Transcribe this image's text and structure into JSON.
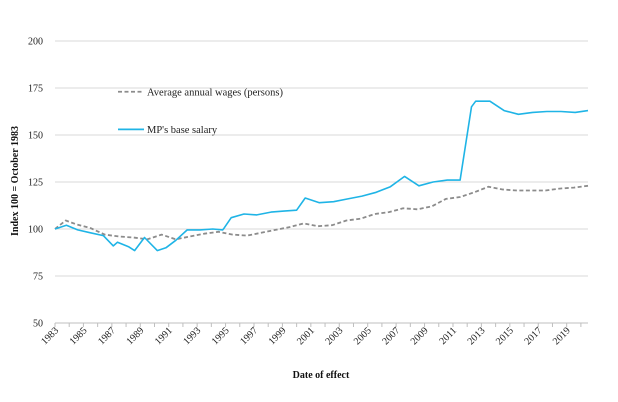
{
  "chart_data": {
    "type": "line",
    "title": "",
    "xlabel": "Date of effect",
    "ylabel": "Index 100 = October 1983",
    "xlim": [
      1983,
      2020.5
    ],
    "ylim": [
      50,
      200
    ],
    "x_ticks": [
      1983,
      1985,
      1987,
      1989,
      1991,
      1993,
      1995,
      1997,
      1999,
      2001,
      2003,
      2005,
      2007,
      2009,
      2011,
      2013,
      2015,
      2017,
      2019
    ],
    "x_tick_labels": [
      "1983",
      "1985",
      "1987",
      "1989",
      "1991",
      "1993",
      "1995",
      "1997",
      "1999",
      "2001",
      "2003",
      "2005",
      "2007",
      "2009",
      "2011",
      "2013",
      "2015",
      "2017",
      "2019"
    ],
    "y_ticks": [
      50,
      75,
      100,
      125,
      150,
      175,
      200
    ],
    "y_tick_labels": [
      "50",
      "75",
      "100",
      "125",
      "150",
      "175",
      "200"
    ],
    "grid": "horizontal",
    "legend_position": "upper-left inside plot",
    "series": [
      {
        "name": "Average annual wages (persons)",
        "color": "#8c8c8c",
        "style": "dashed",
        "x": [
          1983,
          1983.75,
          1984.5,
          1985.5,
          1986.5,
          1987.5,
          1988.5,
          1989.5,
          1990.5,
          1991.5,
          1992.5,
          1993.5,
          1994.5,
          1995.5,
          1996.5,
          1997.5,
          1998.5,
          1999.5,
          2000.5,
          2001.5,
          2002.5,
          2003.5,
          2004.5,
          2005.5,
          2006.5,
          2007.5,
          2008.5,
          2009.5,
          2010.5,
          2011.5,
          2012.5,
          2013.5,
          2014.5,
          2015.5,
          2016.5,
          2017.5,
          2018.5,
          2019.5,
          2020.5
        ],
        "y": [
          100,
          104.5,
          102.5,
          100.5,
          97,
          96,
          95.5,
          94.5,
          97,
          94.5,
          96,
          97.5,
          98.5,
          97,
          96.5,
          98,
          99.5,
          101,
          103,
          101.5,
          102,
          104.5,
          105.5,
          108,
          109,
          111,
          110.5,
          112,
          116,
          117,
          119.5,
          122.5,
          121,
          120.5,
          120.5,
          120.5,
          121.5,
          122,
          123
        ]
      },
      {
        "name": "MP's base salary",
        "color": "#1fb4e6",
        "style": "solid",
        "x": [
          1983,
          1983.8,
          1984.6,
          1985.5,
          1986.4,
          1987.1,
          1987.4,
          1988.2,
          1988.6,
          1989.3,
          1990.2,
          1990.8,
          1991.5,
          1992.3,
          1993.2,
          1994.1,
          1994.8,
          1994.9,
          1995.4,
          1996.3,
          1997.2,
          1998.2,
          1999.1,
          2000.0,
          2000.6,
          2001.6,
          2002.6,
          2003.6,
          2004.6,
          2005.6,
          2006.6,
          2007.6,
          2008.6,
          2009.6,
          2010.6,
          2011.5,
          2012.3,
          2012.6,
          2013.6,
          2014.6,
          2015.6,
          2016.6,
          2017.6,
          2018.6,
          2019.6,
          2020.5
        ],
        "y": [
          100,
          102,
          99.5,
          98,
          96.5,
          91,
          93,
          90.5,
          88.5,
          95.5,
          88.5,
          90,
          94,
          99.5,
          99.5,
          100,
          99.5,
          100.5,
          106,
          108,
          107.5,
          109,
          109.5,
          110,
          116.5,
          114,
          114.5,
          116,
          117.5,
          119.5,
          122.5,
          128,
          123,
          125,
          126,
          126,
          165,
          168,
          168,
          163,
          161,
          162,
          162.5,
          162.5,
          162,
          163
        ]
      }
    ]
  }
}
